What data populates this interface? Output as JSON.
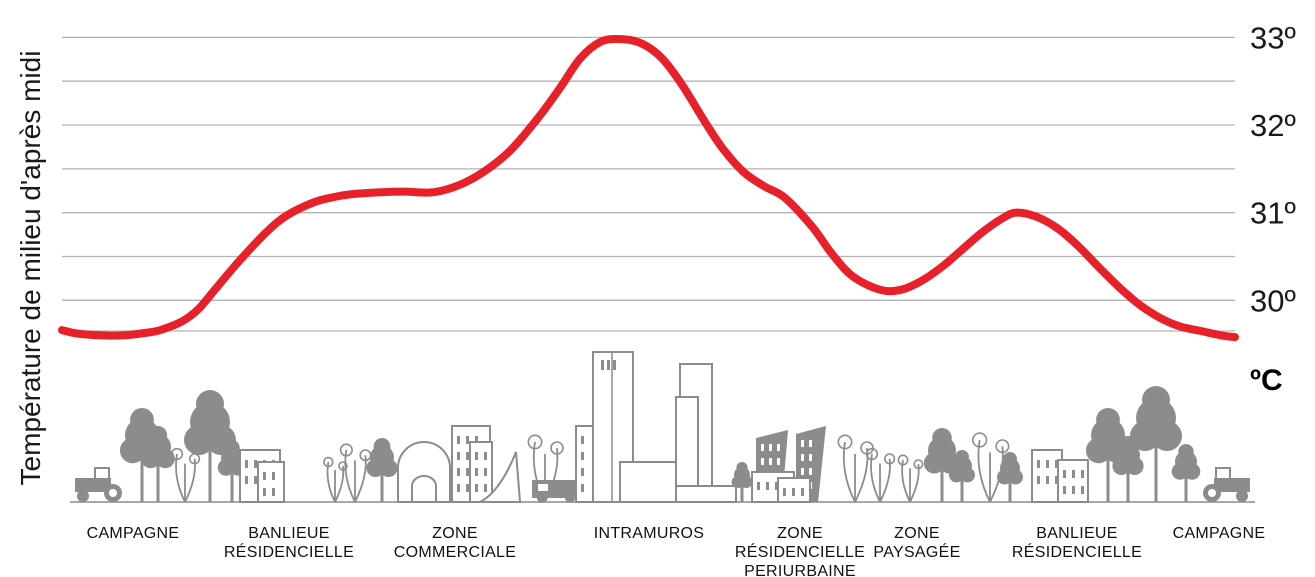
{
  "chart_data": {
    "type": "line",
    "ylabel": "Température de milieu d'après midi",
    "unit": "ºC",
    "ylim": [
      29.65,
      33.05
    ],
    "ytick_labels": [
      "33º",
      "32º",
      "31º",
      "30º"
    ],
    "ytick_values": [
      33,
      32,
      31,
      30
    ],
    "grid": true,
    "line_color": "#e8202a",
    "skyline_color": "#8c8c8c",
    "categories": [
      [
        "CAMPAGNE"
      ],
      [
        "BANLIEUE",
        "RÉSIDENCIELLE"
      ],
      [
        "ZONE",
        "COMMERCIALE"
      ],
      [
        "INTRAMUROS"
      ],
      [
        "ZONE",
        "RÉSIDENCIELLE",
        "PERIURBAINE"
      ],
      [
        "ZONE",
        "PAYSAGÉE"
      ],
      [
        "BANLIEUE",
        "RÉSIDENCIELLE"
      ],
      [
        "CAMPAGNE"
      ]
    ],
    "series": [
      {
        "x": [
          0,
          0.08,
          0.18,
          0.3,
          0.45,
          0.62,
          0.72,
          0.88,
          1.0,
          1.12,
          1.3,
          1.5,
          1.65,
          1.85,
          2.0,
          2.12,
          2.3,
          2.5,
          2.7,
          2.85,
          3.0,
          3.15,
          3.3,
          3.5,
          3.65,
          3.8,
          3.95,
          4.1,
          4.25,
          4.4,
          4.55,
          4.72,
          4.85,
          5.0,
          5.15,
          5.3,
          5.5,
          5.65,
          5.8,
          6.0,
          6.15,
          6.3,
          6.45,
          6.6,
          6.75,
          6.9,
          7.0
        ],
        "values": [
          29.66,
          29.63,
          29.61,
          29.6,
          29.6,
          29.63,
          29.66,
          29.76,
          29.9,
          30.12,
          30.45,
          30.78,
          30.97,
          31.12,
          31.18,
          31.21,
          31.23,
          31.24,
          31.23,
          31.28,
          31.38,
          31.53,
          31.73,
          32.1,
          32.42,
          32.76,
          32.95,
          32.98,
          32.93,
          32.76,
          32.45,
          32.02,
          31.72,
          31.46,
          31.3,
          31.17,
          30.84,
          30.52,
          30.27,
          30.12,
          30.12,
          30.22,
          30.38,
          30.58,
          30.78,
          30.94,
          31.0
        ]
      }
    ],
    "series_extra_tail": {
      "x": [
        7.15,
        7.3,
        7.45,
        7.6,
        7.75,
        7.9,
        8.05,
        8.2,
        8.35,
        8.5,
        8.6
      ],
      "values": [
        30.95,
        30.82,
        30.62,
        30.38,
        30.15,
        29.95,
        29.8,
        29.7,
        29.65,
        29.6,
        29.58
      ]
    }
  }
}
